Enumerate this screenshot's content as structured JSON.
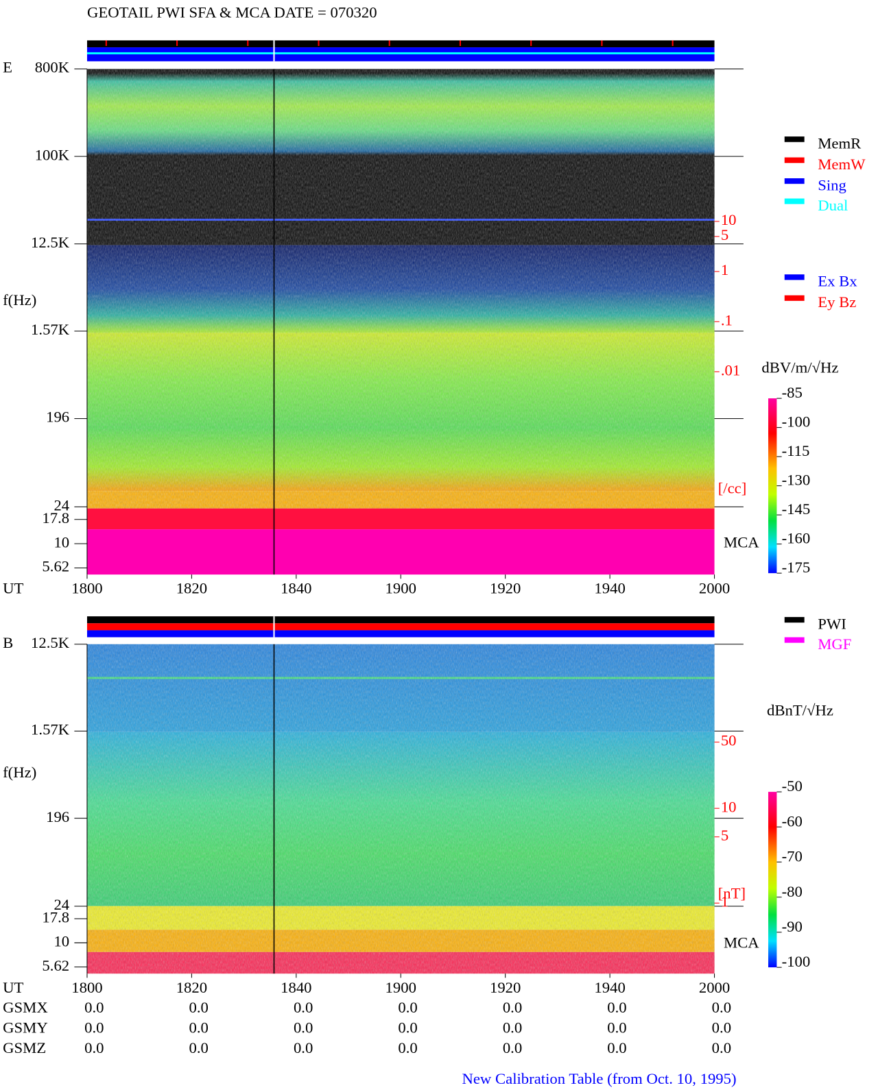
{
  "title": "GEOTAIL  PWI SFA & MCA   DATE = 070320",
  "chart_data": [
    {
      "type": "spectrogram",
      "panel_label": "E",
      "ylabel": "f(Hz)",
      "xlabel": "UT",
      "log": true,
      "ylim": [
        4.8,
        800000
      ],
      "yticks": [
        {
          "value": 800000,
          "label": "800K"
        },
        {
          "value": 100000,
          "label": "100K"
        },
        {
          "value": 12500,
          "label": "12.5K"
        },
        {
          "value": 1570,
          "label": "1.57K"
        },
        196,
        24,
        17.8,
        10,
        5.62
      ],
      "xlim": [
        1800,
        2000
      ],
      "xticks": [
        1800,
        1820,
        1840,
        1900,
        1920,
        1940,
        2000
      ],
      "y2lim": [
        9e-07,
        11000
      ],
      "y2ticks": [
        10,
        5,
        1,
        {
          "value": 0.1,
          "label": ".1"
        },
        {
          "value": 0.01,
          "label": ".01"
        }
      ],
      "y2label": "[/cc]",
      "y2color": "#ff0000",
      "band_label": "MCA",
      "colorbar": {
        "label": "dBV/m/√Hz",
        "lim": [
          -175,
          -85
        ],
        "ticks": [
          -85,
          -100,
          -115,
          -130,
          -145,
          -160,
          -175
        ]
      },
      "legends": [
        [
          {
            "name": "MemR",
            "color": "#000000"
          },
          {
            "name": "MemW",
            "color": "#ff0000"
          },
          {
            "name": "Sing",
            "color": "#0000ff"
          },
          {
            "name": "Dual",
            "color": "#00ffff"
          }
        ],
        [
          {
            "name": "Ex Bx",
            "color": "#0000ff"
          },
          {
            "name": "Ey Bz",
            "color": "#ff0000"
          }
        ]
      ]
    },
    {
      "type": "spectrogram",
      "panel_label": "B",
      "ylabel": "f(Hz)",
      "xlabel": "UT",
      "log": true,
      "ylim": [
        4.8,
        12500
      ],
      "yticks": [
        {
          "value": 12500,
          "label": "12.5K"
        },
        {
          "value": 1570,
          "label": "1.57K"
        },
        196,
        24,
        17.8,
        10,
        5.62
      ],
      "xlim": [
        1800,
        2000
      ],
      "xticks": [
        1800,
        1820,
        1840,
        1900,
        1920,
        1940,
        2000
      ],
      "y2lim": [
        0.18,
        540
      ],
      "y2ticks": [
        50,
        10,
        5,
        1
      ],
      "y2label": "[nT]",
      "y2color": "#ff0000",
      "band_label": "MCA",
      "colorbar": {
        "label": "dBnT/√Hz",
        "lim": [
          -100,
          -50
        ],
        "ticks": [
          -50,
          -60,
          -70,
          -80,
          -90,
          -100
        ]
      },
      "legends": [
        [
          {
            "name": "PWI",
            "color": "#000000"
          },
          {
            "name": "MGF",
            "color": "#ff00ff"
          }
        ]
      ]
    }
  ],
  "gsm": {
    "rows": [
      {
        "name": "GSMX",
        "values": [
          "0.0",
          "0.0",
          "0.0",
          "0.0",
          "0.0",
          "0.0",
          "0.0"
        ]
      },
      {
        "name": "GSMY",
        "values": [
          "0.0",
          "0.0",
          "0.0",
          "0.0",
          "0.0",
          "0.0",
          "0.0"
        ]
      },
      {
        "name": "GSMZ",
        "values": [
          "0.0",
          "0.0",
          "0.0",
          "0.0",
          "0.0",
          "0.0",
          "0.0"
        ]
      }
    ]
  },
  "footer": "New Calibration Table (from Oct. 10, 1995)"
}
